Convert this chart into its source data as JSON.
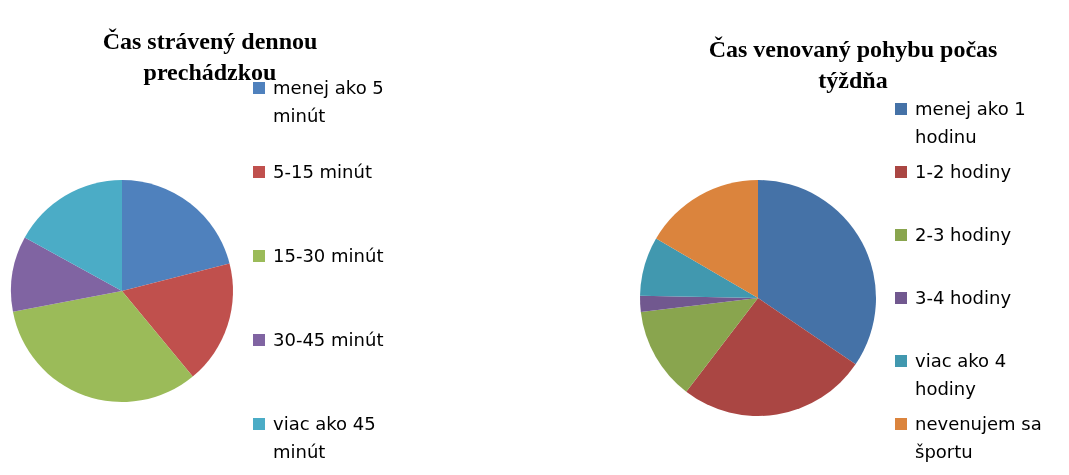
{
  "chart_data": [
    {
      "type": "pie",
      "title": "Čas strávený dennou prechádzkou",
      "categories": [
        "menej ako 5 minút",
        "5-15 minút",
        "15-30 minút",
        "30-45 minút",
        "viac ako 45 minút"
      ],
      "values": [
        21,
        18,
        33,
        11,
        17
      ],
      "colors": [
        "#4f81bd",
        "#c0504d",
        "#9bbb59",
        "#8064a2",
        "#4bacc6"
      ],
      "legend": "right"
    },
    {
      "type": "pie",
      "title": "Čas venovaný pohybu počas týždňa",
      "categories": [
        "menej ako 1 hodinu",
        "1-2 hodiny",
        "2-3 hodiny",
        "3-4 hodiny",
        "viac ako 4 hodiny",
        "nevenujem sa športu"
      ],
      "values": [
        34.5,
        25.9,
        12.7,
        2.2,
        8.1,
        16.6
      ],
      "colors": [
        "#4572a7",
        "#aa4643",
        "#89a54e",
        "#71588f",
        "#4198af",
        "#db843d"
      ],
      "legend": "right"
    }
  ]
}
